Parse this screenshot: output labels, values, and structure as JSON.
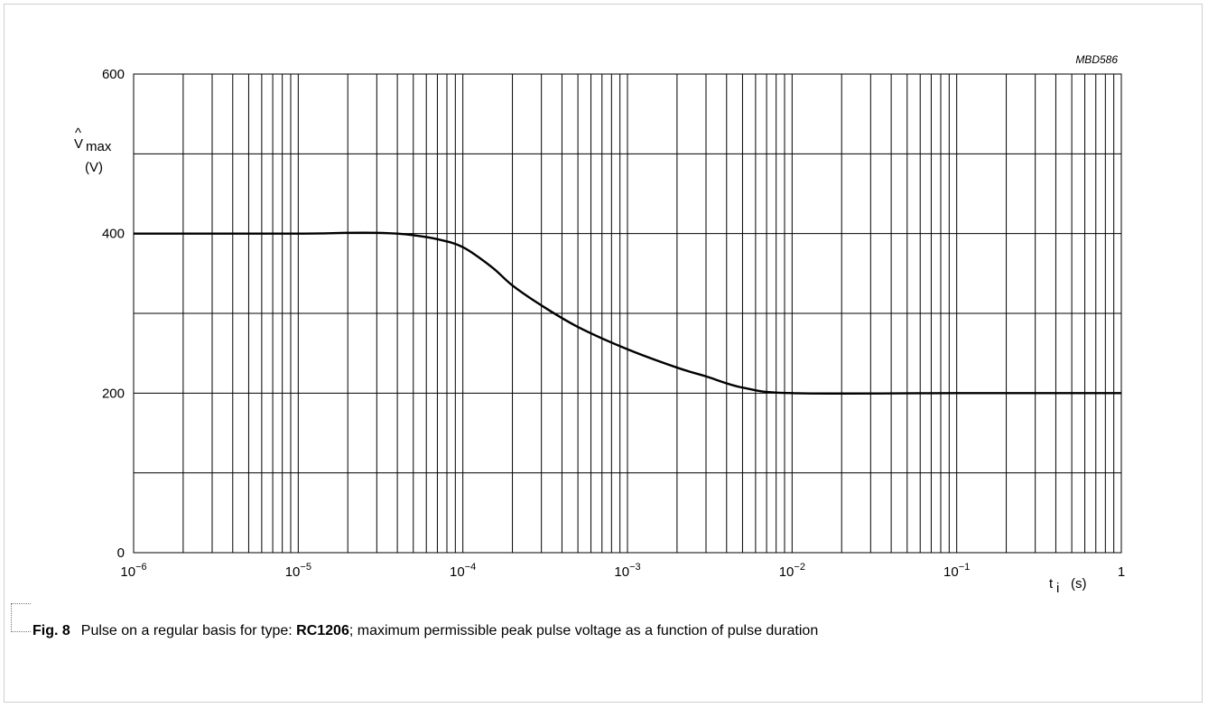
{
  "chart_data": {
    "type": "line",
    "code": "MBD586",
    "ylabel": {
      "symbol": "V",
      "sub": "max",
      "unit": "(V)"
    },
    "xlabel": {
      "symbol": "t",
      "sub": "i",
      "unit": "(s)"
    },
    "xscale": "log",
    "xlim": [
      1e-06,
      1
    ],
    "ylim": [
      0,
      600
    ],
    "x_ticks": [
      {
        "base": "10",
        "exp": "−6",
        "value": 1e-06
      },
      {
        "base": "10",
        "exp": "−5",
        "value": 1e-05
      },
      {
        "base": "10",
        "exp": "−4",
        "value": 0.0001
      },
      {
        "base": "10",
        "exp": "−3",
        "value": 0.001
      },
      {
        "base": "10",
        "exp": "−2",
        "value": 0.01
      },
      {
        "base": "10",
        "exp": "−1",
        "value": 0.1
      },
      {
        "base": "1",
        "exp": "",
        "value": 1
      }
    ],
    "y_ticks": [
      {
        "label": "0",
        "value": 0
      },
      {
        "label": "200",
        "value": 200
      },
      {
        "label": "400",
        "value": 400
      },
      {
        "label": "600",
        "value": 600
      }
    ],
    "y_gridlines": [
      0,
      100,
      200,
      300,
      400,
      500,
      600
    ],
    "grid": true,
    "series": [
      {
        "x": [
          1e-06,
          1e-05,
          2e-05,
          3e-05,
          4e-05,
          5e-05,
          7e-05,
          0.0001,
          0.00015,
          0.0002,
          0.0003,
          0.0005,
          0.001,
          0.002,
          0.003,
          0.005,
          0.01,
          0.1,
          1
        ],
        "y": [
          400,
          400,
          401,
          401,
          400,
          398,
          393,
          383,
          358,
          335,
          310,
          283,
          255,
          232,
          221,
          207,
          200,
          200,
          200
        ]
      }
    ]
  },
  "caption": {
    "fig": "Fig. 8",
    "text_before": "Pulse on a regular basis for type: ",
    "type_name": "RC1206",
    "text_after": "; maximum permissible peak pulse voltage as a function of pulse duration"
  }
}
